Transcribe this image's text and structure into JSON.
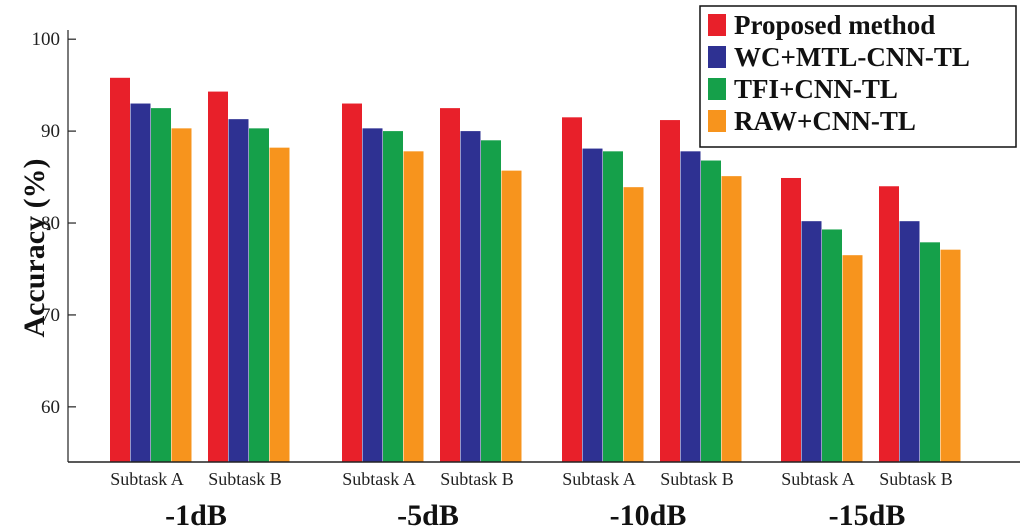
{
  "chart_data": {
    "type": "bar",
    "ylabel": "Accuracy (%)",
    "ylim": [
      54,
      101
    ],
    "yticks": [
      60,
      70,
      80,
      90,
      100
    ],
    "groups": [
      "-1dB",
      "-5dB",
      "-10dB",
      "-15dB"
    ],
    "subcategories": [
      "Subtask A",
      "Subtask B"
    ],
    "categories": [
      "-1dB Subtask A",
      "-1dB Subtask B",
      "-5dB Subtask A",
      "-5dB Subtask B",
      "-10dB Subtask A",
      "-10dB Subtask B",
      "-15dB Subtask A",
      "-15dB Subtask B"
    ],
    "series": [
      {
        "name": "Proposed method",
        "color": "#e8202a",
        "values": [
          95.8,
          94.3,
          93.0,
          92.5,
          91.5,
          91.2,
          84.9,
          84.0
        ]
      },
      {
        "name": "WC+MTL-CNN-TL",
        "color": "#2e3192",
        "values": [
          93.0,
          91.3,
          90.3,
          90.0,
          88.1,
          87.8,
          80.2,
          80.2
        ]
      },
      {
        "name": "TFI+CNN-TL",
        "color": "#15a04a",
        "values": [
          92.5,
          90.3,
          90.0,
          89.0,
          87.8,
          86.8,
          79.3,
          77.9
        ]
      },
      {
        "name": "RAW+CNN-TL",
        "color": "#f7941d",
        "values": [
          90.3,
          88.2,
          87.8,
          85.7,
          83.9,
          85.1,
          76.5,
          77.1
        ]
      }
    ],
    "legend_position": "top-right",
    "grid": false
  }
}
